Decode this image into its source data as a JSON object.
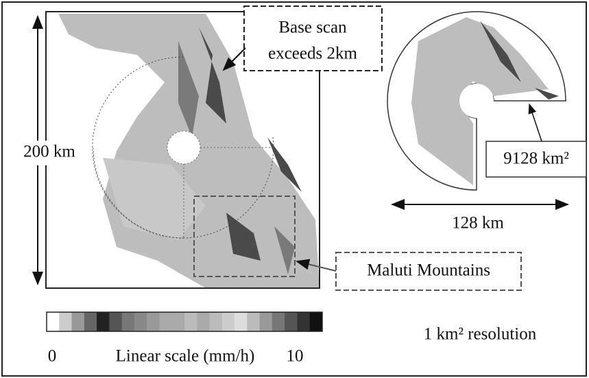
{
  "annotations": {
    "base_scan": [
      "Base scan",
      "exceeds 2km"
    ],
    "height": "200 km",
    "area": "9128 km²",
    "width": "128 km",
    "region": "Maluti Mountains",
    "resolution": "1 km² resolution"
  },
  "scale": {
    "min": "0",
    "title": "Linear scale (mm/h)",
    "max": "10"
  }
}
